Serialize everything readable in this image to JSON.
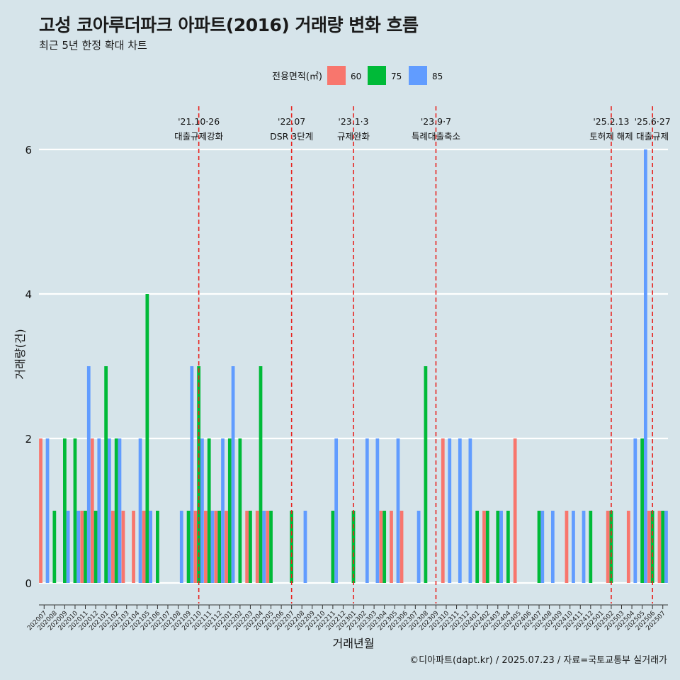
{
  "title": "고성 코아루더파크 아파트(2016) 거래량 변화 흐름",
  "subtitle": "최근 5년 한정 확대 차트",
  "footer": "©디아파트(dapt.kr) / 2025.07.23 / 자료=국토교통부 실거래가",
  "chart_data": {
    "type": "bar",
    "xlabel": "거래년월",
    "ylabel": "거래량(건)",
    "ylim": [
      0,
      6
    ],
    "yticks": [
      0,
      2,
      4,
      6
    ],
    "legend": {
      "title": "전용면적(㎡)",
      "position": "top",
      "entries": [
        {
          "name": "60",
          "color": "#f8766d"
        },
        {
          "name": "75",
          "color": "#00ba38"
        },
        {
          "name": "85",
          "color": "#619cff"
        }
      ]
    },
    "categories": [
      "202007",
      "202008",
      "202009",
      "202010",
      "202011",
      "202012",
      "202101",
      "202102",
      "202103",
      "202104",
      "202105",
      "202106",
      "202107",
      "202108",
      "202109",
      "202110",
      "202111",
      "202112",
      "202201",
      "202202",
      "202203",
      "202204",
      "202205",
      "202206",
      "202207",
      "202208",
      "202209",
      "202210",
      "202211",
      "202212",
      "202301",
      "202302",
      "202303",
      "202304",
      "202305",
      "202306",
      "202307",
      "202308",
      "202309",
      "202310",
      "202311",
      "202312",
      "202401",
      "202402",
      "202403",
      "202404",
      "202405",
      "202406",
      "202407",
      "202408",
      "202409",
      "202410",
      "202411",
      "202412",
      "202501",
      "202502",
      "202503",
      "202504",
      "202505",
      "202506",
      "202507"
    ],
    "series": [
      {
        "name": "60",
        "color": "#f8766d",
        "values": [
          2,
          0,
          0,
          0,
          1,
          2,
          0,
          1,
          1,
          1,
          1,
          0,
          0,
          0,
          0,
          1,
          1,
          1,
          1,
          0,
          1,
          1,
          1,
          0,
          0,
          0,
          0,
          0,
          0,
          0,
          0,
          0,
          0,
          1,
          1,
          1,
          0,
          0,
          0,
          2,
          0,
          0,
          0,
          1,
          0,
          0,
          2,
          0,
          0,
          0,
          0,
          1,
          0,
          0,
          0,
          1,
          0,
          1,
          0,
          1,
          1
        ]
      },
      {
        "name": "75",
        "color": "#00ba38",
        "values": [
          0,
          1,
          2,
          2,
          1,
          1,
          3,
          2,
          0,
          0,
          4,
          1,
          0,
          0,
          1,
          3,
          2,
          1,
          2,
          2,
          1,
          3,
          1,
          0,
          1,
          0,
          0,
          0,
          1,
          0,
          1,
          0,
          0,
          1,
          0,
          0,
          0,
          3,
          0,
          0,
          0,
          0,
          1,
          1,
          1,
          1,
          0,
          0,
          1,
          0,
          0,
          0,
          0,
          1,
          0,
          1,
          0,
          0,
          2,
          1,
          1
        ]
      },
      {
        "name": "85",
        "color": "#619cff",
        "values": [
          2,
          0,
          1,
          1,
          3,
          2,
          2,
          2,
          0,
          2,
          1,
          0,
          0,
          1,
          3,
          2,
          1,
          2,
          3,
          0,
          0,
          1,
          0,
          0,
          0,
          1,
          0,
          0,
          2,
          0,
          0,
          2,
          2,
          0,
          2,
          0,
          1,
          0,
          0,
          2,
          2,
          2,
          0,
          0,
          1,
          0,
          0,
          0,
          1,
          1,
          0,
          1,
          1,
          0,
          0,
          0,
          0,
          2,
          6,
          0,
          1
        ]
      }
    ],
    "annotations": [
      {
        "x": "202110",
        "date": "'21.10·26",
        "label": "대출규제강화"
      },
      {
        "x": "202207",
        "date": "'22.07",
        "label": "DSR 3단계"
      },
      {
        "x": "202301",
        "date": "'23.1·3",
        "label": "규제완화"
      },
      {
        "x": "202309",
        "date": "'23.9·7",
        "label": "특례대출축소"
      },
      {
        "x": "202502",
        "date": "'25.2.13",
        "label": "토허제 해제"
      },
      {
        "x": "202506",
        "date": "'25.6·27",
        "label": "대출규제"
      }
    ]
  }
}
